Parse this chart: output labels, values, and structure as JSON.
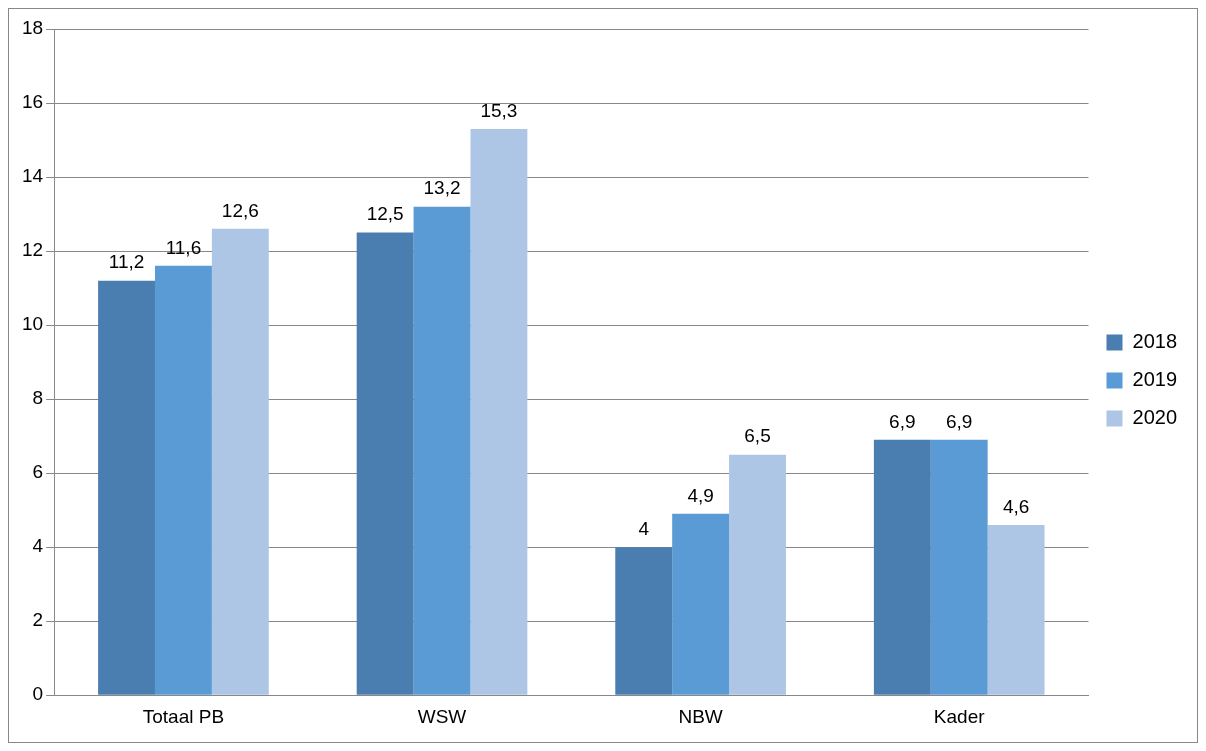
{
  "chart_data": {
    "type": "bar",
    "categories": [
      "Totaal PB",
      "WSW",
      "NBW",
      "Kader"
    ],
    "series": [
      {
        "name": "2018",
        "color": "#4a7eb0",
        "values": [
          11.2,
          12.5,
          4,
          6.9
        ],
        "value_labels": [
          "11,2",
          "12,5",
          "4",
          "6,9"
        ]
      },
      {
        "name": "2019",
        "color": "#5b9bd5",
        "values": [
          11.6,
          13.2,
          4.9,
          6.9
        ],
        "value_labels": [
          "11,6",
          "13,2",
          "4,9",
          "6,9"
        ]
      },
      {
        "name": "2020",
        "color": "#adc6e6",
        "values": [
          12.6,
          15.3,
          6.5,
          4.6
        ],
        "value_labels": [
          "12,6",
          "15,3",
          "6,5",
          "4,6"
        ]
      }
    ],
    "ylim": [
      0,
      18
    ],
    "yticks": [
      0,
      2,
      4,
      6,
      8,
      10,
      12,
      14,
      16,
      18
    ],
    "grid": "y",
    "legend": "right"
  }
}
